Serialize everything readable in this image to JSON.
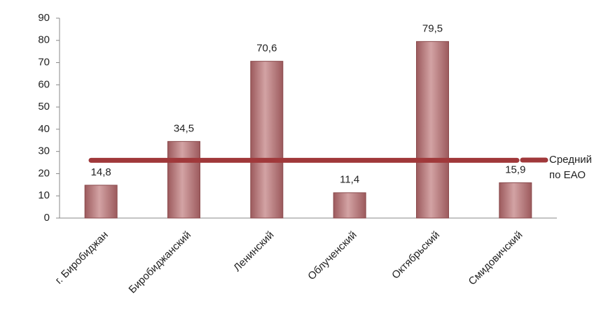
{
  "chart_data": {
    "type": "bar",
    "categories": [
      "г. Биробиджан",
      "Биробиджанский",
      "Ленинский",
      "Облученский",
      "Октябрьский",
      "Смидовичский"
    ],
    "values": [
      14.8,
      34.5,
      70.6,
      11.4,
      79.5,
      15.9
    ],
    "value_labels": [
      "14,8",
      "34,5",
      "70,6",
      "11,4",
      "79,5",
      "15,9"
    ],
    "color": "#b8797b",
    "average": {
      "name": "Средний по ЕАО",
      "value": 26,
      "color": "#a0383a"
    },
    "ylim": [
      0,
      90
    ],
    "yticks": [
      0,
      10,
      20,
      30,
      40,
      50,
      60,
      70,
      80,
      90
    ],
    "grid": false
  }
}
